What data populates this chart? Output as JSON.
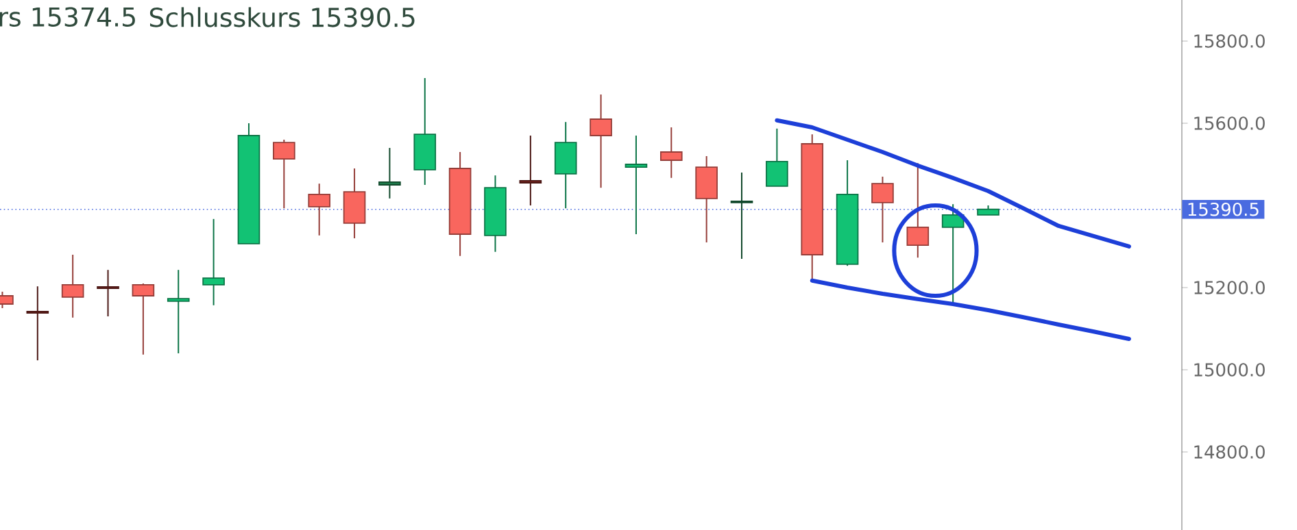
{
  "chart_data": {
    "type": "candlestick",
    "annotations": [
      "rs 15374.5",
      "Schlusskurs 15390.5"
    ],
    "categories": [
      null,
      null,
      null,
      null,
      null,
      null,
      null,
      null,
      null,
      null,
      null,
      null,
      null,
      null,
      null,
      null,
      null,
      null,
      null,
      null,
      null,
      null,
      null,
      null,
      null,
      null,
      null,
      null,
      null,
      null,
      null,
      null,
      null,
      null
    ],
    "ohlc": [
      [
        15180,
        15190,
        15150,
        15160
      ],
      [
        15142,
        15203,
        15023,
        15138
      ],
      [
        15207,
        15280,
        15127,
        15177
      ],
      [
        15202,
        15243,
        15130,
        15198
      ],
      [
        15207,
        15210,
        15037,
        15180
      ],
      [
        15167,
        15243,
        15040,
        15173
      ],
      [
        15207,
        15367,
        15157,
        15223
      ],
      [
        15307,
        15600,
        15307,
        15570
      ],
      [
        15553,
        15560,
        15393,
        15513
      ],
      [
        15427,
        15453,
        15327,
        15397
      ],
      [
        15433,
        15490,
        15320,
        15357
      ],
      [
        15450,
        15540,
        15417,
        15457
      ],
      [
        15487,
        15710,
        15450,
        15573
      ],
      [
        15490,
        15530,
        15277,
        15330
      ],
      [
        15327,
        15473,
        15287,
        15443
      ],
      [
        15460,
        15570,
        15400,
        15455
      ],
      [
        15477,
        15603,
        15393,
        15553
      ],
      [
        15610,
        15670,
        15443,
        15570
      ],
      [
        15493,
        15570,
        15330,
        15500
      ],
      [
        15530,
        15590,
        15467,
        15510
      ],
      [
        15493,
        15520,
        15310,
        15417
      ],
      [
        15407,
        15480,
        15270,
        15410
      ],
      [
        15447,
        15587,
        15447,
        15507
      ],
      [
        15550,
        15573,
        15217,
        15280
      ],
      [
        15257,
        15510,
        15253,
        15427
      ],
      [
        15453,
        15470,
        15310,
        15407
      ],
      [
        15347,
        15503,
        15273,
        15303
      ],
      [
        15347,
        15403,
        15163,
        15377
      ],
      [
        15377,
        15400,
        15377,
        15390.5
      ],
      null,
      null,
      null,
      null,
      null
    ],
    "colors": [
      "#f9665e",
      "#7a2420",
      "#f9665e",
      "#7a2420",
      "#f9665e",
      "#12c274",
      "#12c274",
      "#12c274",
      "#f9665e",
      "#f9665e",
      "#f9665e",
      "#1e7a4a",
      "#12c274",
      "#f9665e",
      "#12c274",
      "#7a2420",
      "#12c274",
      "#f9665e",
      "#12c274",
      "#f9665e",
      "#f9665e",
      "#1e7a4a",
      "#12c274",
      "#f9665e",
      "#12c274",
      "#f9665e",
      "#f9665e",
      "#12c274",
      "#12c274",
      null,
      null,
      null,
      null,
      null
    ],
    "ylim": [
      14610,
      15900
    ],
    "yticks": [
      {
        "value": 14800,
        "label": "14800.0"
      },
      {
        "value": 15000,
        "label": "15000.0"
      },
      {
        "value": 15200,
        "label": "15200.0"
      },
      {
        "value": 15600,
        "label": "15600.0"
      },
      {
        "value": 15800,
        "label": "15800.0"
      }
    ],
    "ref_lines": [
      {
        "axis": "y",
        "value": 15390.5,
        "label": "15390.5",
        "color": "#4a6be0",
        "line_style": "dotted"
      }
    ],
    "series": [
      {
        "type": "line",
        "color": "#1d3fd8",
        "values": [
          null,
          null,
          null,
          null,
          null,
          null,
          null,
          null,
          null,
          null,
          null,
          null,
          null,
          null,
          null,
          null,
          null,
          null,
          null,
          null,
          null,
          null,
          15607,
          15590,
          15560,
          15530,
          15497,
          15467,
          15435,
          15393,
          15350,
          15325,
          15300,
          null
        ]
      },
      {
        "type": "line",
        "color": "#1d3fd8",
        "values": [
          null,
          null,
          null,
          null,
          null,
          null,
          null,
          null,
          null,
          null,
          null,
          null,
          null,
          null,
          null,
          null,
          null,
          null,
          null,
          null,
          null,
          null,
          null,
          15217,
          15200,
          15185,
          15172,
          15160,
          15145,
          15128,
          15110,
          15093,
          15075,
          null
        ]
      }
    ]
  }
}
